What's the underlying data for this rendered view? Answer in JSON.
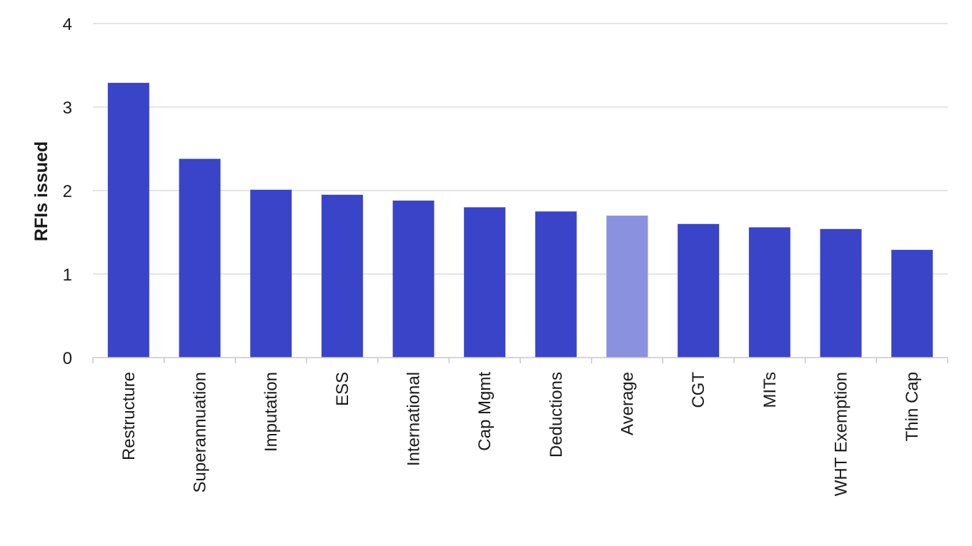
{
  "chart_data": {
    "type": "bar",
    "categories": [
      "Restructure",
      "Superannuation",
      "Imputation",
      "ESS",
      "International",
      "Cap Mgmt",
      "Deductions",
      "Average",
      "CGT",
      "MITs",
      "WHT Exemption",
      "Thin Cap"
    ],
    "values": [
      3.29,
      2.38,
      2.01,
      1.95,
      1.88,
      1.8,
      1.75,
      1.7,
      1.6,
      1.56,
      1.54,
      1.29
    ],
    "highlight_category": "Average",
    "title": "",
    "xlabel": "",
    "ylabel": "RFIs issued",
    "ylim": [
      0,
      4
    ],
    "yticks": [
      "0",
      "1",
      "2",
      "3",
      "4"
    ],
    "grid": true,
    "colors": {
      "bar": "#3944c9",
      "highlight": "#8a91de",
      "grid": "#d4d4d4",
      "axis": "#c8c8c8"
    }
  }
}
